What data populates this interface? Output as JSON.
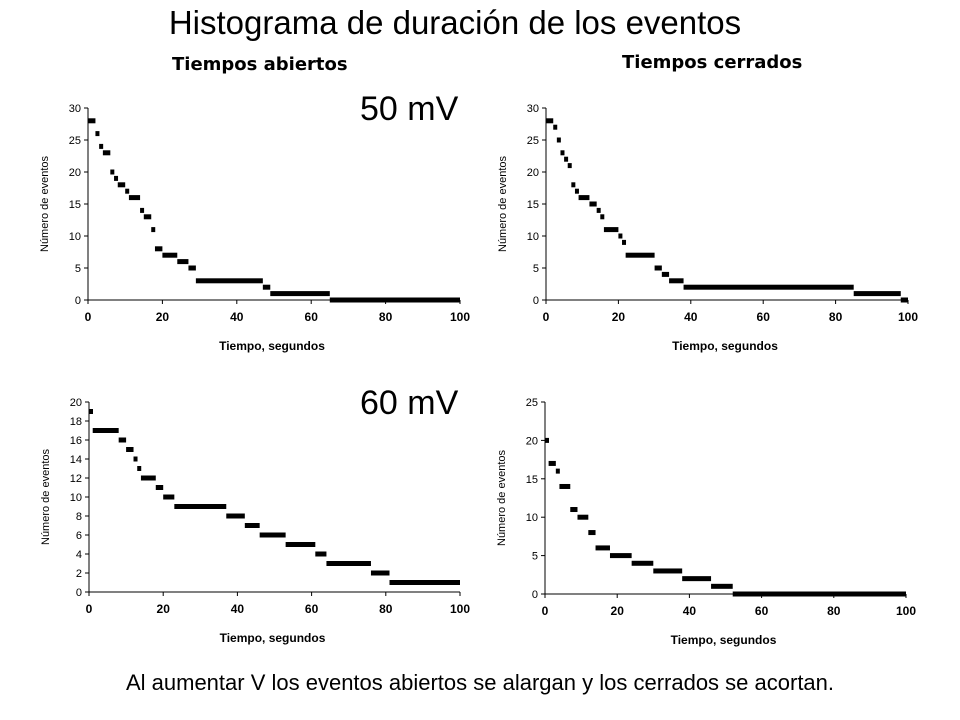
{
  "title": "Histograma de duración de los eventos",
  "column_titles": {
    "open": "Tiempos abiertos",
    "closed": "Tiempos cerrados"
  },
  "voltages": {
    "top": "50 mV",
    "bottom": "60 mV"
  },
  "caption": "Al aumentar V los eventos abiertos se alargan y los cerrados se acortan.",
  "chart_data": [
    {
      "type": "scatter",
      "title": "Tiempos abiertos",
      "group": "50 mV",
      "xlabel": "Tiempo, segundos",
      "ylabel": "Número de eventos",
      "xlim": [
        0,
        100
      ],
      "ylim": [
        0,
        30
      ],
      "xticks": [
        0,
        20,
        40,
        60,
        80,
        100
      ],
      "yticks": [
        0,
        5,
        10,
        15,
        20,
        25,
        30
      ],
      "grid": false,
      "segments": [
        [
          0,
          2,
          28
        ],
        [
          2,
          3,
          26
        ],
        [
          3,
          4,
          24
        ],
        [
          4,
          6,
          23
        ],
        [
          6,
          7,
          20
        ],
        [
          7,
          8,
          19
        ],
        [
          8,
          10,
          18
        ],
        [
          10,
          11,
          17
        ],
        [
          11,
          14,
          16
        ],
        [
          14,
          15,
          14
        ],
        [
          15,
          17,
          13
        ],
        [
          17,
          18,
          11
        ],
        [
          18,
          20,
          8
        ],
        [
          20,
          24,
          7
        ],
        [
          24,
          27,
          6
        ],
        [
          27,
          29,
          5
        ],
        [
          29,
          47,
          3
        ],
        [
          47,
          49,
          2
        ],
        [
          49,
          65,
          1
        ],
        [
          65,
          100,
          0
        ]
      ]
    },
    {
      "type": "scatter",
      "title": "Tiempos cerrados",
      "group": "50 mV",
      "xlabel": "Tiempo, segundos",
      "ylabel": "Número de eventos",
      "xlim": [
        0,
        100
      ],
      "ylim": [
        0,
        30
      ],
      "xticks": [
        0,
        20,
        40,
        60,
        80,
        100
      ],
      "yticks": [
        0,
        5,
        10,
        15,
        20,
        25,
        30
      ],
      "grid": false,
      "segments": [
        [
          0,
          2,
          28
        ],
        [
          2,
          3,
          27
        ],
        [
          3,
          4,
          25
        ],
        [
          4,
          5,
          23
        ],
        [
          5,
          6,
          22
        ],
        [
          6,
          7,
          21
        ],
        [
          7,
          8,
          18
        ],
        [
          8,
          9,
          17
        ],
        [
          9,
          12,
          16
        ],
        [
          12,
          14,
          15
        ],
        [
          14,
          15,
          14
        ],
        [
          15,
          16,
          13
        ],
        [
          16,
          20,
          11
        ],
        [
          20,
          21,
          10
        ],
        [
          21,
          22,
          9
        ],
        [
          22,
          30,
          7
        ],
        [
          30,
          32,
          5
        ],
        [
          32,
          34,
          4
        ],
        [
          34,
          38,
          3
        ],
        [
          38,
          85,
          2
        ],
        [
          85,
          98,
          1
        ],
        [
          98,
          100,
          0
        ]
      ]
    },
    {
      "type": "scatter",
      "title": "Tiempos abiertos",
      "group": "60 mV",
      "xlabel": "Tiempo, segundos",
      "ylabel": "Número de eventos",
      "xlim": [
        0,
        100
      ],
      "ylim": [
        0,
        20
      ],
      "xticks": [
        0,
        20,
        40,
        60,
        80,
        100
      ],
      "yticks": [
        0,
        2,
        4,
        6,
        8,
        10,
        12,
        14,
        16,
        18,
        20
      ],
      "grid": false,
      "segments": [
        [
          0,
          1,
          19
        ],
        [
          1,
          8,
          17
        ],
        [
          8,
          10,
          16
        ],
        [
          10,
          12,
          15
        ],
        [
          12,
          13,
          14
        ],
        [
          13,
          14,
          13
        ],
        [
          14,
          18,
          12
        ],
        [
          18,
          20,
          11
        ],
        [
          20,
          23,
          10
        ],
        [
          23,
          37,
          9
        ],
        [
          37,
          42,
          8
        ],
        [
          42,
          46,
          7
        ],
        [
          46,
          53,
          6
        ],
        [
          53,
          61,
          5
        ],
        [
          61,
          64,
          4
        ],
        [
          64,
          76,
          3
        ],
        [
          76,
          81,
          2
        ],
        [
          81,
          100,
          1
        ]
      ]
    },
    {
      "type": "scatter",
      "title": "Tiempos cerrados",
      "group": "60 mV",
      "xlabel": "Tiempo, segundos",
      "ylabel": "Número de eventos",
      "xlim": [
        0,
        100
      ],
      "ylim": [
        0,
        25
      ],
      "xticks": [
        0,
        20,
        40,
        60,
        80,
        100
      ],
      "yticks": [
        0,
        5,
        10,
        15,
        20,
        25
      ],
      "grid": false,
      "segments": [
        [
          0,
          1,
          20
        ],
        [
          1,
          3,
          17
        ],
        [
          3,
          4,
          16
        ],
        [
          4,
          7,
          14
        ],
        [
          7,
          9,
          11
        ],
        [
          9,
          12,
          10
        ],
        [
          12,
          14,
          8
        ],
        [
          14,
          18,
          6
        ],
        [
          18,
          24,
          5
        ],
        [
          24,
          30,
          4
        ],
        [
          30,
          38,
          3
        ],
        [
          38,
          46,
          2
        ],
        [
          46,
          52,
          1
        ],
        [
          52,
          100,
          0
        ]
      ]
    }
  ]
}
